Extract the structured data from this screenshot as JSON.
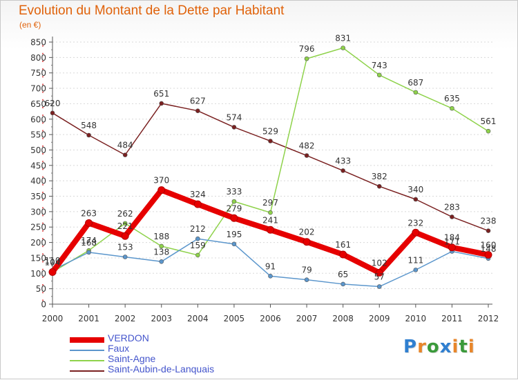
{
  "title": "Evolution du Montant de la Dette par Habitant",
  "unit_label": "(en €)",
  "logo": {
    "text": "Proxiti",
    "letters": [
      {
        "ch": "P",
        "color": "#2f7fd0"
      },
      {
        "ch": "r",
        "color": "#e8862a"
      },
      {
        "ch": "o",
        "color": "#3a9a3a"
      },
      {
        "ch": "x",
        "color": "#2f7fd0"
      },
      {
        "ch": "i",
        "color": "#e8862a"
      },
      {
        "ch": "t",
        "color": "#3a9a3a"
      },
      {
        "ch": "i",
        "color": "#e8862a"
      }
    ]
  },
  "chart_data": {
    "type": "line",
    "title": "Evolution du Montant de la Dette par Habitant",
    "ylabel": "(en €)",
    "xlabel": "",
    "x": [
      "2000",
      "2001",
      "2002",
      "2003",
      "2004",
      "2005",
      "2006",
      "2007",
      "2008",
      "2009",
      "2010",
      "2011",
      "2012"
    ],
    "ylim": [
      0,
      850
    ],
    "yticks": [
      0,
      50,
      100,
      150,
      200,
      250,
      300,
      350,
      400,
      450,
      500,
      550,
      600,
      650,
      700,
      750,
      800,
      850
    ],
    "grid": "horizontal-dashed",
    "legend_position": "bottom-left",
    "series": [
      {
        "name": "VERDON",
        "color": "#e60000",
        "line_width": 8,
        "point_size": 5,
        "values": [
          104,
          263,
          221,
          370,
          324,
          279,
          241,
          202,
          161,
          102,
          232,
          184,
          160
        ],
        "labels": [
          "104",
          "263",
          "221",
          "370",
          "324",
          "279",
          "241",
          "202",
          "161",
          "102",
          "232",
          "184",
          "160"
        ]
      },
      {
        "name": "Faux",
        "color": "#5b96cc",
        "line_width": 1.5,
        "point_size": 3,
        "values": [
          110,
          168,
          153,
          138,
          212,
          195,
          91,
          79,
          65,
          57,
          111,
          171,
          148
        ],
        "labels": [
          "110",
          "168",
          "153",
          "138",
          "212",
          "195",
          "91",
          "79",
          "65",
          "57",
          "111",
          "171",
          "148"
        ]
      },
      {
        "name": "Saint-Agne",
        "color": "#8ed24a",
        "line_width": 1.5,
        "point_size": 3,
        "values": [
          104,
          174,
          262,
          188,
          159,
          333,
          297,
          796,
          831,
          743,
          687,
          635,
          561
        ],
        "labels": [
          "104",
          "174",
          "262",
          "188",
          "159",
          "333",
          "297",
          "796",
          "831",
          "743",
          "687",
          "635",
          "561"
        ]
      },
      {
        "name": "Saint-Aubin-de-Lanquais",
        "color": "#7a2020",
        "line_width": 1.5,
        "point_size": 3,
        "values": [
          620,
          548,
          484,
          651,
          627,
          574,
          529,
          482,
          433,
          382,
          340,
          283,
          238
        ],
        "labels": [
          "620",
          "548",
          "484",
          "651",
          "627",
          "574",
          "529",
          "482",
          "433",
          "382",
          "340",
          "283",
          "238"
        ]
      }
    ]
  }
}
